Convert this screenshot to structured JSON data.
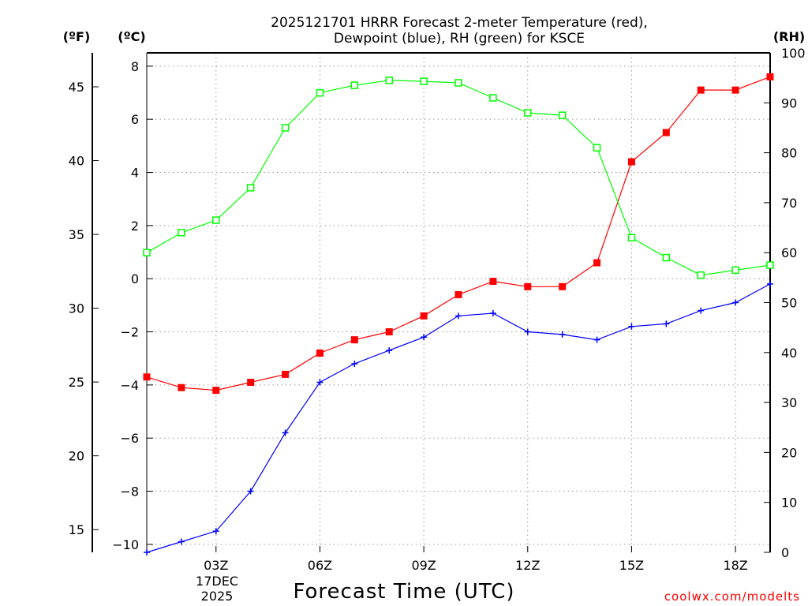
{
  "title_line1": "2025121701 HRRR Forecast 2-meter Temperature (red),",
  "title_line2": "Dewpoint (blue), RH (green) for KSCE",
  "unit_f": "(ºF)",
  "unit_c": "(ºC)",
  "unit_rh": "(RH)",
  "xaxis_title": "Forecast Time (UTC)",
  "credit": "coolwx.com/modelts",
  "date_label": [
    "17DEC",
    "2025"
  ],
  "chart_data": {
    "type": "line",
    "x_hours": [
      1,
      2,
      3,
      4,
      5,
      6,
      7,
      8,
      9,
      10,
      11,
      12,
      13,
      14,
      15,
      16,
      17,
      18,
      19
    ],
    "xlim": [
      1,
      19
    ],
    "x_ticks": [
      {
        "hour": 3,
        "label": "03Z"
      },
      {
        "hour": 6,
        "label": "06Z"
      },
      {
        "hour": 9,
        "label": "09Z"
      },
      {
        "hour": 12,
        "label": "12Z"
      },
      {
        "hour": 15,
        "label": "15Z"
      },
      {
        "hour": 18,
        "label": "18Z"
      }
    ],
    "ylim_c": [
      -10.3,
      8.5
    ],
    "y_ticks_c": [
      8,
      6,
      4,
      2,
      0,
      -2,
      -4,
      -6,
      -8,
      -10
    ],
    "y_tick_labels_c": [
      "8",
      "6",
      "4",
      "2",
      "0",
      "−2",
      "−4",
      "−6",
      "−8",
      "−10"
    ],
    "y_ticks_f": [
      45,
      40,
      35,
      30,
      25,
      20,
      15
    ],
    "ylim_rh": [
      0,
      100
    ],
    "y_ticks_rh": [
      100,
      90,
      80,
      70,
      60,
      50,
      40,
      30,
      20,
      10,
      0
    ],
    "series": [
      {
        "name": "2-meter Temperature",
        "unit": "C",
        "color": "#ff0000",
        "marker": "filled-square",
        "values": [
          -3.7,
          -4.1,
          -4.2,
          -3.9,
          -3.6,
          -2.8,
          -2.3,
          -2.0,
          -1.4,
          -0.6,
          -0.1,
          -0.3,
          -0.3,
          0.6,
          4.4,
          5.5,
          7.1,
          7.1,
          7.6
        ]
      },
      {
        "name": "Dewpoint",
        "unit": "C",
        "color": "#0000ff",
        "marker": "plus",
        "values": [
          -10.3,
          -9.9,
          -9.5,
          -8.0,
          -5.8,
          -3.9,
          -3.2,
          -2.7,
          -2.2,
          -1.4,
          -1.3,
          -2.0,
          -2.1,
          -2.3,
          -1.8,
          -1.7,
          -1.2,
          -0.9,
          -0.2
        ]
      },
      {
        "name": "RH",
        "unit": "%",
        "color": "#00ff00",
        "marker": "open-square",
        "values": [
          60,
          64,
          66.5,
          73,
          85,
          92,
          93.5,
          94.5,
          94.3,
          94,
          91,
          88,
          87.5,
          81,
          63,
          59,
          55.5,
          56.5,
          57.5
        ]
      }
    ]
  }
}
